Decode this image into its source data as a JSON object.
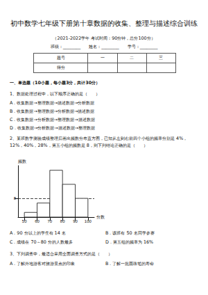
{
  "header": {
    "title": "初中数学七年级下册第十章数据的收集、整理与描述综合训练",
    "subtitle": "（2021-2022学年 考试时间：90分钟，总分100分）",
    "fields": [
      "班级：________",
      "姓名：________",
      "学号：________"
    ]
  },
  "score_table": {
    "header": [
      "题号",
      "一",
      "二",
      "三"
    ],
    "row_label": "得分"
  },
  "section": "一、单选题（10小题，每小题3分，共计30分）",
  "questions": [
    {
      "stem": "1、数据处理过程中，以下顺序正确的是（　　）",
      "options": [
        "A．收集数据→整理数据→描述数据→分析数据",
        "B．收集数据→整理数据→分析数据→描述数据",
        "C．收集数据→分析数据→整理数据→描述数据",
        "D．收集数据→分析数据→描述数据→整理数据"
      ]
    },
    {
      "stem": "2、某班数学测验成绩整理后画出频数分布直方图，已知从左到右前四个小组的频率分别是 4%，12%，40%，28%，第五小组的频数是 8，则下列结论正确的是（　　）",
      "options": [
        "A．90 分以上的学生有 14 名",
        "B．该班有 50 名同学参赛",
        "C．成绩在 70～80 分的人数最多",
        "D．第五组的频率为 16%"
      ]
    },
    {
      "stem": "3、下列调查中，最适合采用全面调查方式的是（　　）",
      "options": [
        "A．了解外地游客对旅游景点的印象",
        "B．了解一批圆珠笔的寿命"
      ]
    }
  ],
  "chart_data": {
    "type": "histogram",
    "xlabel": "分数",
    "ylabel": "频数",
    "bins": [
      50,
      60,
      70,
      80,
      90,
      100
    ],
    "counts": [
      2,
      6,
      20,
      14,
      8
    ],
    "color": "#ffffff",
    "xlim": [
      45,
      105
    ],
    "xticks": [
      50,
      60,
      70,
      80,
      90,
      100
    ],
    "ylim": [
      0,
      22
    ],
    "yticks": [
      8
    ],
    "grid": true
  }
}
